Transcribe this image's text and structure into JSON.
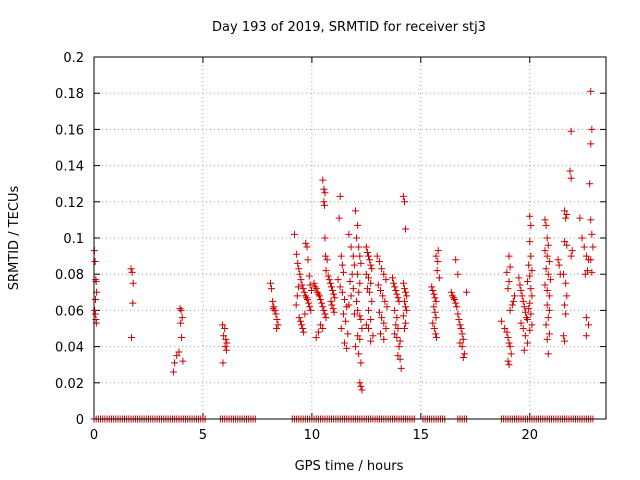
{
  "chart_data": {
    "type": "scatter",
    "title": "Day 193 of 2019, SRMTID for receiver stj3",
    "xlabel": "GPS time / hours",
    "ylabel": "SRMTID / TECUs",
    "xlim": [
      0,
      23.5
    ],
    "ylim": [
      0,
      0.2
    ],
    "xticks": [
      0,
      5,
      10,
      15,
      20
    ],
    "xtick_labels": [
      "0",
      "5",
      "10",
      "15",
      "20"
    ],
    "yticks": [
      0,
      0.02,
      0.04,
      0.06,
      0.08,
      0.1,
      0.12,
      0.14,
      0.16,
      0.18,
      0.2
    ],
    "ytick_labels": [
      "0",
      "0.02",
      "0.04",
      "0.06",
      "0.08",
      "0.1",
      "0.12",
      "0.14",
      "0.16",
      "0.18",
      "0.2"
    ],
    "grid": true,
    "marker": "+",
    "color": "#cc0000",
    "zero_band_ranges": [
      [
        0,
        5.1
      ],
      [
        5.8,
        7.4
      ],
      [
        9.1,
        14.7
      ],
      [
        15.1,
        16.1
      ],
      [
        16.7,
        17.1
      ],
      [
        18.7,
        22.9
      ]
    ],
    "zero_band_step": 0.1,
    "points": [
      [
        0.02,
        0.093
      ],
      [
        0.05,
        0.087
      ],
      [
        0.08,
        0.077
      ],
      [
        0.1,
        0.076
      ],
      [
        0.12,
        0.07
      ],
      [
        0.07,
        0.066
      ],
      [
        0.03,
        0.06
      ],
      [
        0.06,
        0.058
      ],
      [
        0.09,
        0.055
      ],
      [
        0.11,
        0.053
      ],
      [
        1.7,
        0.083
      ],
      [
        1.75,
        0.081
      ],
      [
        1.8,
        0.075
      ],
      [
        1.78,
        0.064
      ],
      [
        1.72,
        0.045
      ],
      [
        3.7,
        0.031
      ],
      [
        3.65,
        0.026
      ],
      [
        3.8,
        0.035
      ],
      [
        3.9,
        0.037
      ],
      [
        3.95,
        0.061
      ],
      [
        4.0,
        0.06
      ],
      [
        4.05,
        0.056
      ],
      [
        3.98,
        0.053
      ],
      [
        4.02,
        0.045
      ],
      [
        4.08,
        0.032
      ],
      [
        5.9,
        0.052
      ],
      [
        6.0,
        0.05
      ],
      [
        5.95,
        0.046
      ],
      [
        6.05,
        0.044
      ],
      [
        6.1,
        0.042
      ],
      [
        6.02,
        0.04
      ],
      [
        6.08,
        0.038
      ],
      [
        5.92,
        0.031
      ],
      [
        8.1,
        0.075
      ],
      [
        8.15,
        0.072
      ],
      [
        8.2,
        0.065
      ],
      [
        8.25,
        0.062
      ],
      [
        8.3,
        0.06
      ],
      [
        8.35,
        0.058
      ],
      [
        8.4,
        0.055
      ],
      [
        8.45,
        0.052
      ],
      [
        8.38,
        0.05
      ],
      [
        8.22,
        0.061
      ],
      [
        9.2,
        0.102
      ],
      [
        9.3,
        0.091
      ],
      [
        9.35,
        0.086
      ],
      [
        9.4,
        0.083
      ],
      [
        9.45,
        0.08
      ],
      [
        9.5,
        0.077
      ],
      [
        9.55,
        0.074
      ],
      [
        9.6,
        0.072
      ],
      [
        9.65,
        0.07
      ],
      [
        9.7,
        0.068
      ],
      [
        9.75,
        0.067
      ],
      [
        9.8,
        0.066
      ],
      [
        9.85,
        0.064
      ],
      [
        9.9,
        0.062
      ],
      [
        9.95,
        0.06
      ],
      [
        9.42,
        0.056
      ],
      [
        9.48,
        0.054
      ],
      [
        9.52,
        0.052
      ],
      [
        9.58,
        0.05
      ],
      [
        9.62,
        0.048
      ],
      [
        9.72,
        0.097
      ],
      [
        9.78,
        0.095
      ],
      [
        9.82,
        0.088
      ],
      [
        9.88,
        0.079
      ],
      [
        9.92,
        0.074
      ],
      [
        9.98,
        0.071
      ],
      [
        9.38,
        0.073
      ],
      [
        9.68,
        0.058
      ],
      [
        9.28,
        0.063
      ],
      [
        9.33,
        0.068
      ],
      [
        10.1,
        0.075
      ],
      [
        10.15,
        0.073
      ],
      [
        10.2,
        0.072
      ],
      [
        10.25,
        0.07
      ],
      [
        10.3,
        0.069
      ],
      [
        10.35,
        0.068
      ],
      [
        10.4,
        0.066
      ],
      [
        10.45,
        0.064
      ],
      [
        10.5,
        0.062
      ],
      [
        10.55,
        0.06
      ],
      [
        10.6,
        0.058
      ],
      [
        10.65,
        0.056
      ],
      [
        10.4,
        0.052
      ],
      [
        10.5,
        0.05
      ],
      [
        10.3,
        0.048
      ],
      [
        10.2,
        0.045
      ],
      [
        10.5,
        0.132
      ],
      [
        10.55,
        0.127
      ],
      [
        10.6,
        0.125
      ],
      [
        10.55,
        0.12
      ],
      [
        10.58,
        0.118
      ],
      [
        10.6,
        0.1
      ],
      [
        10.62,
        0.09
      ],
      [
        10.7,
        0.088
      ],
      [
        10.65,
        0.082
      ],
      [
        10.75,
        0.079
      ],
      [
        10.8,
        0.077
      ],
      [
        10.85,
        0.075
      ],
      [
        10.9,
        0.073
      ],
      [
        10.95,
        0.071
      ],
      [
        11.0,
        0.069
      ],
      [
        11.05,
        0.067
      ],
      [
        10.88,
        0.065
      ],
      [
        10.92,
        0.063
      ],
      [
        10.98,
        0.061
      ],
      [
        11.02,
        0.059
      ],
      [
        11.3,
        0.123
      ],
      [
        11.25,
        0.111
      ],
      [
        11.35,
        0.09
      ],
      [
        11.4,
        0.085
      ],
      [
        11.45,
        0.081
      ],
      [
        11.2,
        0.077
      ],
      [
        11.3,
        0.073
      ],
      [
        11.4,
        0.07
      ],
      [
        11.5,
        0.066
      ],
      [
        11.6,
        0.062
      ],
      [
        11.45,
        0.058
      ],
      [
        11.55,
        0.054
      ],
      [
        11.35,
        0.05
      ],
      [
        11.65,
        0.047
      ],
      [
        11.5,
        0.042
      ],
      [
        11.6,
        0.039
      ],
      [
        11.7,
        0.102
      ],
      [
        11.8,
        0.095
      ],
      [
        11.9,
        0.09
      ],
      [
        11.95,
        0.085
      ],
      [
        11.85,
        0.08
      ],
      [
        11.75,
        0.076
      ],
      [
        11.9,
        0.072
      ],
      [
        11.8,
        0.068
      ],
      [
        11.7,
        0.063
      ],
      [
        11.95,
        0.058
      ],
      [
        12.0,
        0.115
      ],
      [
        12.1,
        0.107
      ],
      [
        12.05,
        0.1
      ],
      [
        12.15,
        0.095
      ],
      [
        12.2,
        0.09
      ],
      [
        12.25,
        0.086
      ],
      [
        12.1,
        0.08
      ],
      [
        12.2,
        0.075
      ],
      [
        12.15,
        0.07
      ],
      [
        12.05,
        0.065
      ],
      [
        12.1,
        0.06
      ],
      [
        12.2,
        0.057
      ],
      [
        12.25,
        0.055
      ],
      [
        12.3,
        0.05
      ],
      [
        12.1,
        0.046
      ],
      [
        12.2,
        0.044
      ],
      [
        12.0,
        0.04
      ],
      [
        12.15,
        0.036
      ],
      [
        12.25,
        0.031
      ],
      [
        12.2,
        0.02
      ],
      [
        12.25,
        0.018
      ],
      [
        12.3,
        0.016
      ],
      [
        12.5,
        0.095
      ],
      [
        12.55,
        0.092
      ],
      [
        12.6,
        0.09
      ],
      [
        12.65,
        0.088
      ],
      [
        12.7,
        0.085
      ],
      [
        12.75,
        0.083
      ],
      [
        12.5,
        0.08
      ],
      [
        12.6,
        0.078
      ],
      [
        12.7,
        0.075
      ],
      [
        12.55,
        0.072
      ],
      [
        12.65,
        0.07
      ],
      [
        12.75,
        0.065
      ],
      [
        12.6,
        0.06
      ],
      [
        12.7,
        0.055
      ],
      [
        12.5,
        0.052
      ],
      [
        12.6,
        0.05
      ],
      [
        12.8,
        0.046
      ],
      [
        12.7,
        0.043
      ],
      [
        13.0,
        0.09
      ],
      [
        13.1,
        0.087
      ],
      [
        13.2,
        0.083
      ],
      [
        13.3,
        0.08
      ],
      [
        13.4,
        0.077
      ],
      [
        13.05,
        0.074
      ],
      [
        13.15,
        0.071
      ],
      [
        13.25,
        0.068
      ],
      [
        13.35,
        0.065
      ],
      [
        13.45,
        0.062
      ],
      [
        13.1,
        0.059
      ],
      [
        13.2,
        0.056
      ],
      [
        13.3,
        0.053
      ],
      [
        13.4,
        0.05
      ],
      [
        13.15,
        0.047
      ],
      [
        13.3,
        0.044
      ],
      [
        13.7,
        0.078
      ],
      [
        13.75,
        0.075
      ],
      [
        13.8,
        0.073
      ],
      [
        13.85,
        0.071
      ],
      [
        13.9,
        0.069
      ],
      [
        13.95,
        0.067
      ],
      [
        14.0,
        0.065
      ],
      [
        13.8,
        0.06
      ],
      [
        13.9,
        0.056
      ],
      [
        13.85,
        0.052
      ],
      [
        13.95,
        0.05
      ],
      [
        13.8,
        0.047
      ],
      [
        13.9,
        0.045
      ],
      [
        14.05,
        0.043
      ],
      [
        14.0,
        0.04
      ],
      [
        13.95,
        0.035
      ],
      [
        14.05,
        0.033
      ],
      [
        14.1,
        0.028
      ],
      [
        14.2,
        0.123
      ],
      [
        14.25,
        0.12
      ],
      [
        14.3,
        0.105
      ],
      [
        14.2,
        0.075
      ],
      [
        14.25,
        0.072
      ],
      [
        14.3,
        0.07
      ],
      [
        14.35,
        0.068
      ],
      [
        14.25,
        0.065
      ],
      [
        14.3,
        0.062
      ],
      [
        14.35,
        0.06
      ],
      [
        14.2,
        0.057
      ],
      [
        14.3,
        0.053
      ],
      [
        14.25,
        0.05
      ],
      [
        15.5,
        0.073
      ],
      [
        15.55,
        0.071
      ],
      [
        15.6,
        0.069
      ],
      [
        15.65,
        0.067
      ],
      [
        15.7,
        0.065
      ],
      [
        15.6,
        0.062
      ],
      [
        15.65,
        0.059
      ],
      [
        15.7,
        0.056
      ],
      [
        15.55,
        0.053
      ],
      [
        15.62,
        0.05
      ],
      [
        15.68,
        0.047
      ],
      [
        15.72,
        0.045
      ],
      [
        15.75,
        0.082
      ],
      [
        15.78,
        0.087
      ],
      [
        15.8,
        0.093
      ],
      [
        15.7,
        0.09
      ],
      [
        15.85,
        0.078
      ],
      [
        16.4,
        0.07
      ],
      [
        16.45,
        0.068
      ],
      [
        16.5,
        0.067
      ],
      [
        16.55,
        0.066
      ],
      [
        16.6,
        0.064
      ],
      [
        16.65,
        0.062
      ],
      [
        16.7,
        0.058
      ],
      [
        16.75,
        0.055
      ],
      [
        16.8,
        0.052
      ],
      [
        16.85,
        0.05
      ],
      [
        16.9,
        0.047
      ],
      [
        16.95,
        0.044
      ],
      [
        16.8,
        0.042
      ],
      [
        16.9,
        0.04
      ],
      [
        17.0,
        0.036
      ],
      [
        16.95,
        0.034
      ],
      [
        16.6,
        0.088
      ],
      [
        16.7,
        0.08
      ],
      [
        17.1,
        0.07
      ],
      [
        18.7,
        0.054
      ],
      [
        18.85,
        0.05
      ],
      [
        18.95,
        0.048
      ],
      [
        19.0,
        0.045
      ],
      [
        19.05,
        0.042
      ],
      [
        19.1,
        0.04
      ],
      [
        19.15,
        0.036
      ],
      [
        19.0,
        0.032
      ],
      [
        19.05,
        0.03
      ],
      [
        19.1,
        0.06
      ],
      [
        19.2,
        0.063
      ],
      [
        19.25,
        0.065
      ],
      [
        19.3,
        0.068
      ],
      [
        19.0,
        0.072
      ],
      [
        19.05,
        0.076
      ],
      [
        18.95,
        0.081
      ],
      [
        19.1,
        0.084
      ],
      [
        19.05,
        0.09
      ],
      [
        19.5,
        0.078
      ],
      [
        19.55,
        0.074
      ],
      [
        19.6,
        0.071
      ],
      [
        19.65,
        0.068
      ],
      [
        19.7,
        0.065
      ],
      [
        19.75,
        0.062
      ],
      [
        19.8,
        0.059
      ],
      [
        19.85,
        0.056
      ],
      [
        19.6,
        0.053
      ],
      [
        19.7,
        0.05
      ],
      [
        19.8,
        0.046
      ],
      [
        19.9,
        0.042
      ],
      [
        19.75,
        0.038
      ],
      [
        20.0,
        0.112
      ],
      [
        20.05,
        0.107
      ],
      [
        20.0,
        0.098
      ],
      [
        20.05,
        0.09
      ],
      [
        19.95,
        0.085
      ],
      [
        20.1,
        0.082
      ],
      [
        20.0,
        0.079
      ],
      [
        19.9,
        0.076
      ],
      [
        20.05,
        0.072
      ],
      [
        20.1,
        0.068
      ],
      [
        20.0,
        0.064
      ],
      [
        19.95,
        0.061
      ],
      [
        20.05,
        0.058
      ],
      [
        19.9,
        0.055
      ],
      [
        20.1,
        0.052
      ],
      [
        20.0,
        0.049
      ],
      [
        20.7,
        0.11
      ],
      [
        20.75,
        0.107
      ],
      [
        20.8,
        0.1
      ],
      [
        20.85,
        0.096
      ],
      [
        20.7,
        0.093
      ],
      [
        20.8,
        0.09
      ],
      [
        20.9,
        0.087
      ],
      [
        20.75,
        0.083
      ],
      [
        20.85,
        0.08
      ],
      [
        20.95,
        0.077
      ],
      [
        20.7,
        0.074
      ],
      [
        20.8,
        0.071
      ],
      [
        20.9,
        0.068
      ],
      [
        20.8,
        0.063
      ],
      [
        20.9,
        0.06
      ],
      [
        20.85,
        0.056
      ],
      [
        20.75,
        0.052
      ],
      [
        20.9,
        0.047
      ],
      [
        20.8,
        0.044
      ],
      [
        20.85,
        0.036
      ],
      [
        21.3,
        0.088
      ],
      [
        21.35,
        0.085
      ],
      [
        21.4,
        0.08
      ],
      [
        21.6,
        0.115
      ],
      [
        21.7,
        0.113
      ],
      [
        21.65,
        0.111
      ],
      [
        21.6,
        0.098
      ],
      [
        21.7,
        0.096
      ],
      [
        21.55,
        0.08
      ],
      [
        21.65,
        0.075
      ],
      [
        21.7,
        0.068
      ],
      [
        21.6,
        0.063
      ],
      [
        21.65,
        0.058
      ],
      [
        21.55,
        0.046
      ],
      [
        21.6,
        0.043
      ],
      [
        21.9,
        0.159
      ],
      [
        21.85,
        0.137
      ],
      [
        21.9,
        0.133
      ],
      [
        21.95,
        0.093
      ],
      [
        21.9,
        0.09
      ],
      [
        22.3,
        0.111
      ],
      [
        22.4,
        0.1
      ],
      [
        22.5,
        0.095
      ],
      [
        22.6,
        0.09
      ],
      [
        22.7,
        0.088
      ],
      [
        22.65,
        0.082
      ],
      [
        22.55,
        0.08
      ],
      [
        22.6,
        0.056
      ],
      [
        22.7,
        0.052
      ],
      [
        22.6,
        0.046
      ],
      [
        22.8,
        0.181
      ],
      [
        22.85,
        0.16
      ],
      [
        22.8,
        0.152
      ],
      [
        22.75,
        0.13
      ],
      [
        22.8,
        0.11
      ],
      [
        22.85,
        0.102
      ],
      [
        22.9,
        0.095
      ],
      [
        22.8,
        0.088
      ],
      [
        22.85,
        0.081
      ]
    ]
  }
}
